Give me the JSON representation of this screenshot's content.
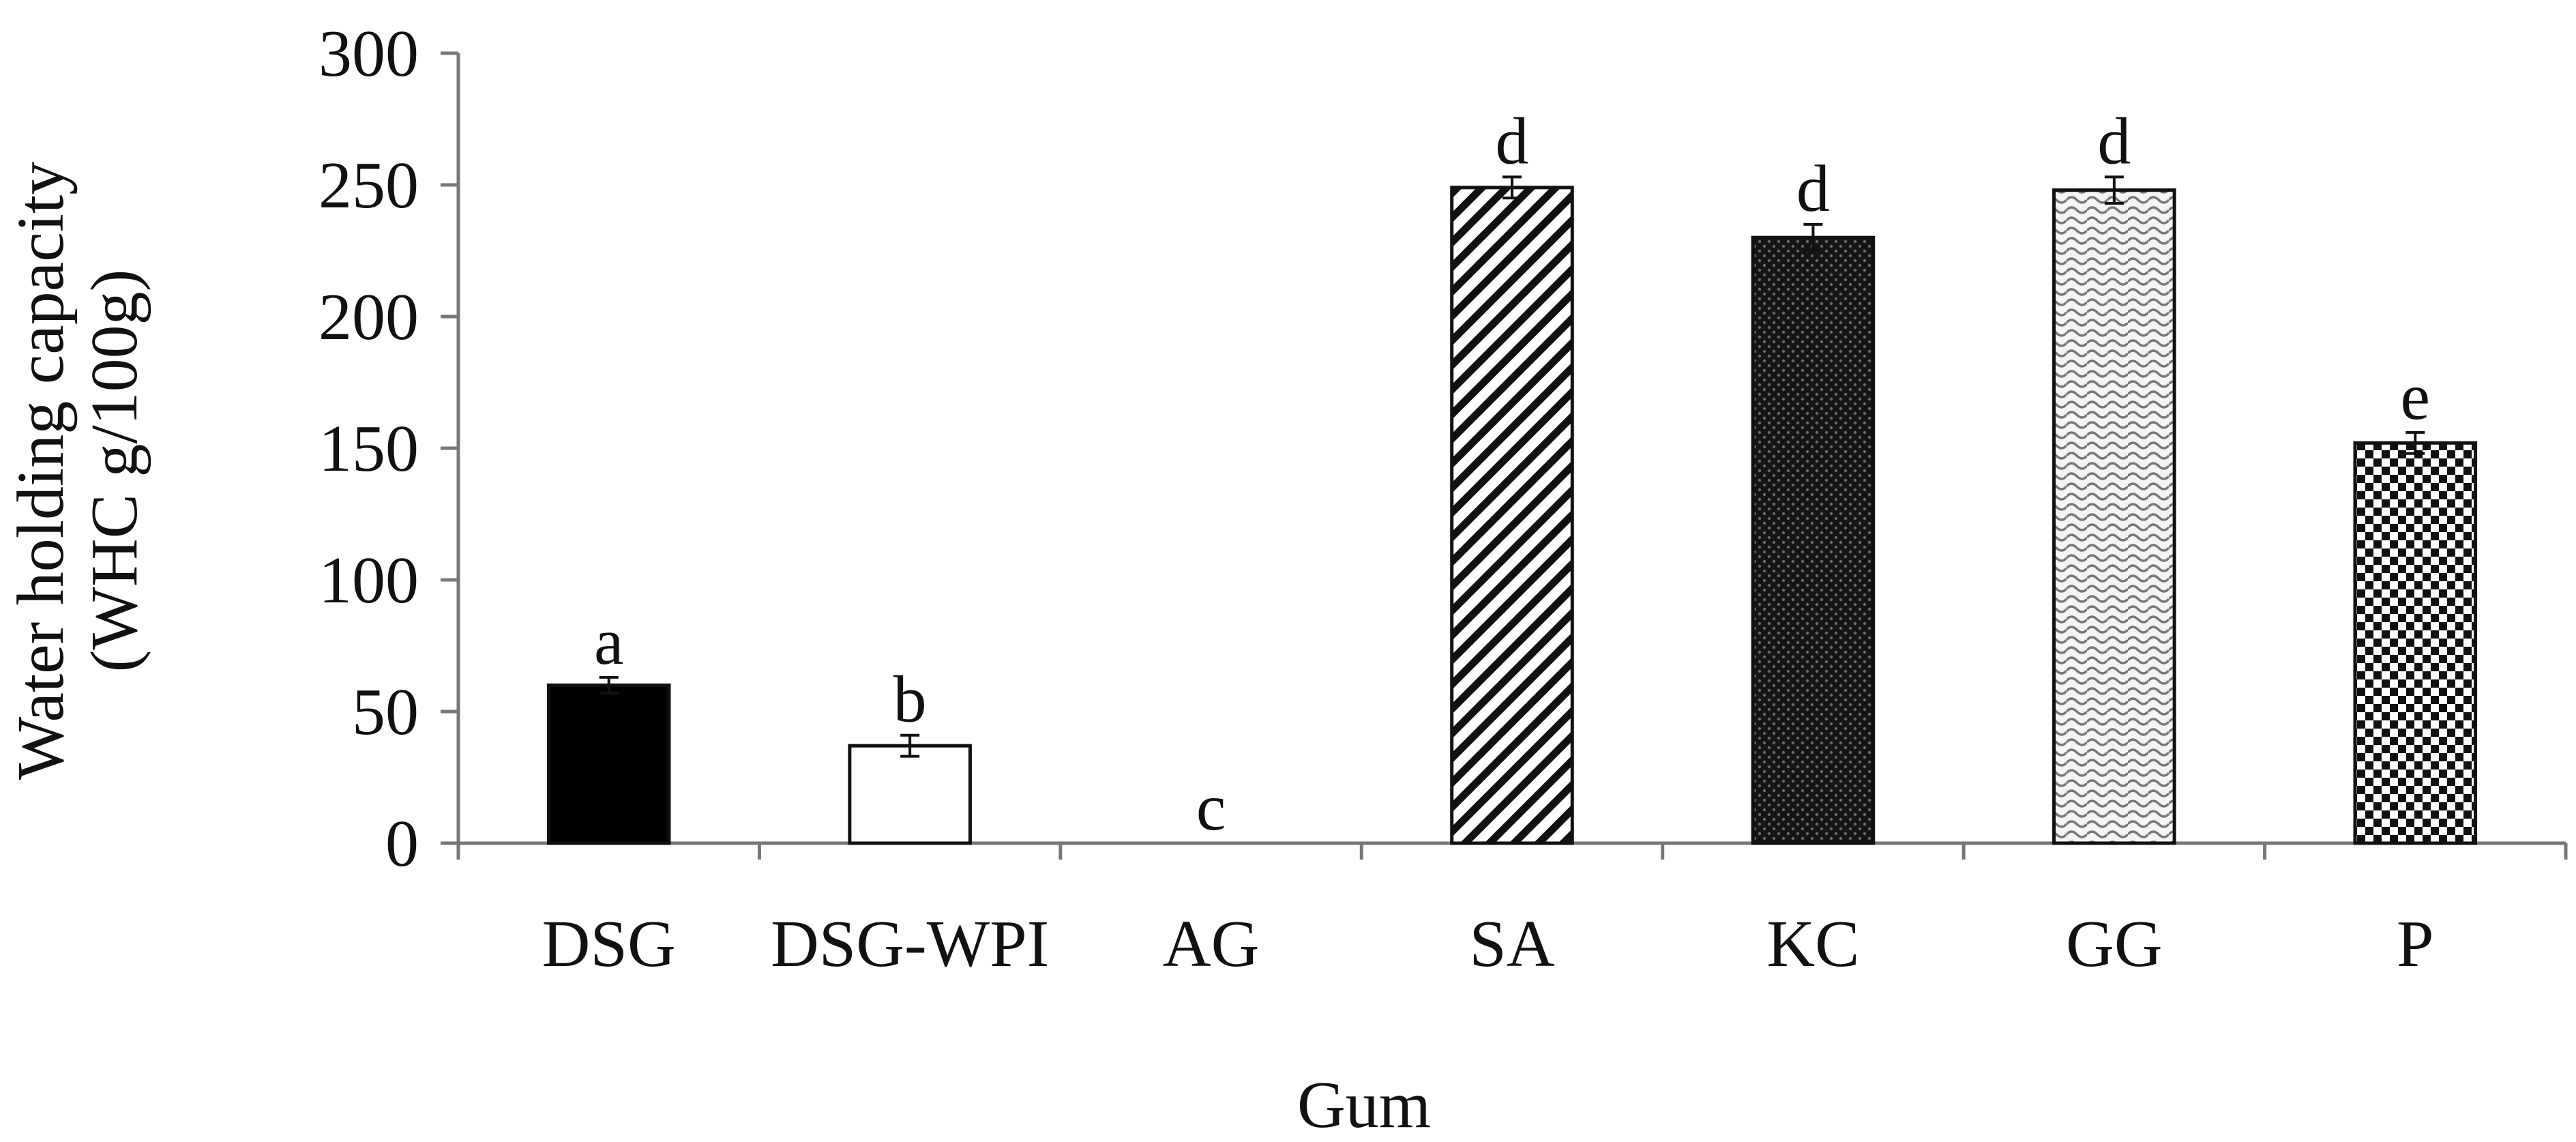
{
  "chart_data": {
    "type": "bar",
    "title": "",
    "xlabel": "Gum",
    "ylabel_line1": "Water holding capacity",
    "ylabel_line2": "(WHC g/100g)",
    "ylim": [
      0,
      300
    ],
    "yticks": [
      0,
      50,
      100,
      150,
      200,
      250,
      300
    ],
    "categories": [
      "DSG",
      "DSG-WPI",
      "AG",
      "SA",
      "KC",
      "GG",
      "P"
    ],
    "values": [
      60,
      37,
      0,
      249,
      230,
      248,
      152
    ],
    "errors": [
      3,
      4,
      0,
      4,
      5,
      5,
      4
    ],
    "significance_labels": [
      "a",
      "b",
      "c",
      "d",
      "d",
      "d",
      "e"
    ],
    "fills": [
      "solid-black",
      "white",
      "none",
      "diagonal-stripes",
      "dense-dark-dots",
      "light-wave",
      "checkerboard"
    ],
    "grid": false,
    "legend": "none"
  }
}
